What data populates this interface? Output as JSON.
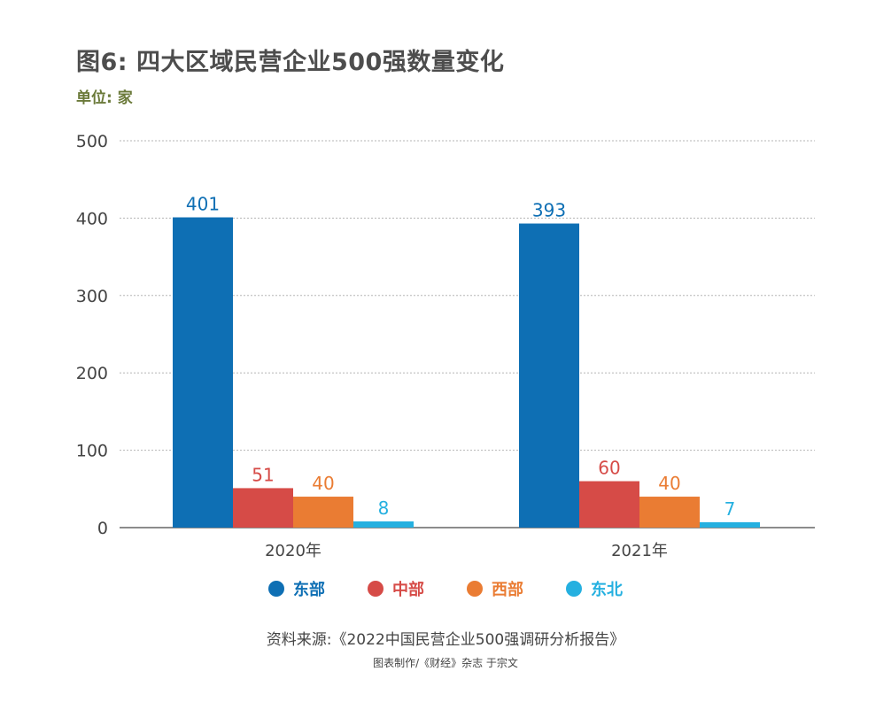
{
  "title": "图6: 四大区域民营企业500强数量变化",
  "unit_label": "单位: 家",
  "source": "资料来源:《2022中国民营企业500强调研分析报告》",
  "credit": "图表制作/《财经》杂志 于宗文",
  "chart_data": {
    "type": "bar",
    "title": "图6: 四大区域民营企业500强数量变化",
    "xlabel": "",
    "ylabel": "单位: 家",
    "ylim": [
      0,
      500
    ],
    "yticks": [
      0,
      100,
      200,
      300,
      400,
      500
    ],
    "grid": true,
    "legend_position": "bottom",
    "categories": [
      "2020年",
      "2021年"
    ],
    "series": [
      {
        "name": "东部",
        "color": "#0e6fb4",
        "values": [
          401,
          393
        ]
      },
      {
        "name": "中部",
        "color": "#d64b47",
        "values": [
          51,
          60
        ]
      },
      {
        "name": "西部",
        "color": "#ea7c33",
        "values": [
          40,
          40
        ]
      },
      {
        "name": "东北",
        "color": "#25b0e0",
        "values": [
          8,
          7
        ]
      }
    ]
  }
}
